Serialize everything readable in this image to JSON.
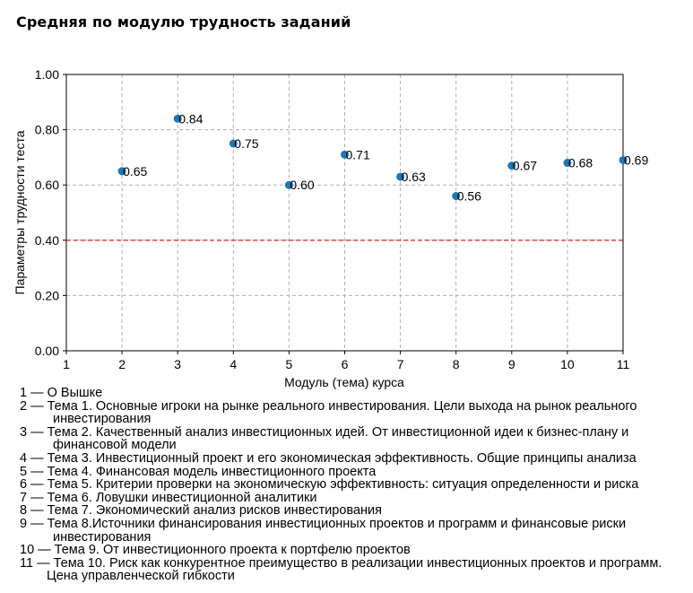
{
  "page_title": "Средняя по модулю трудность заданий",
  "chart_data": {
    "type": "scatter",
    "title": "",
    "xlabel": "Модуль (тема) курса",
    "ylabel": "Параметры трудности теста",
    "xlim": [
      1,
      11
    ],
    "ylim": [
      0,
      1
    ],
    "x_ticks": [
      "1",
      "2",
      "3",
      "4",
      "5",
      "6",
      "7",
      "8",
      "9",
      "10",
      "11"
    ],
    "y_ticks": [
      "0.00",
      "0.20",
      "0.40",
      "0.60",
      "0.80",
      "1.00"
    ],
    "grid": true,
    "points": [
      {
        "x": 2,
        "y": 0.65,
        "label": "0.65"
      },
      {
        "x": 3,
        "y": 0.84,
        "label": "0.84"
      },
      {
        "x": 4,
        "y": 0.75,
        "label": "0.75"
      },
      {
        "x": 5,
        "y": 0.6,
        "label": "0.60"
      },
      {
        "x": 6,
        "y": 0.71,
        "label": "0.71"
      },
      {
        "x": 7,
        "y": 0.63,
        "label": "0.63"
      },
      {
        "x": 8,
        "y": 0.56,
        "label": "0.56"
      },
      {
        "x": 9,
        "y": 0.67,
        "label": "0.67"
      },
      {
        "x": 10,
        "y": 0.68,
        "label": "0.68"
      },
      {
        "x": 11,
        "y": 0.69,
        "label": "0.69"
      }
    ],
    "threshold": {
      "y": 0.4,
      "style": "dashed",
      "color": "#e8333a"
    },
    "point_color": "#1f77b4"
  },
  "legend_items": [
    "1 — О Вышке",
    "2 — Тема 1. Основные игроки на рынке реального инвестирования. Цели выхода на рынок реального инвестирования",
    "3 — Тема 2. Качественный анализ инвестиционных идей. От инвестиционной идеи к бизнес-плану и финансовой модели",
    "4 — Тема 3. Инвестиционный проект и его экономическая эффективность. Общие принципы анализа",
    "5 — Тема 4. Финансовая модель инвестиционного проекта",
    "6 — Тема 5. Критерии проверки на экономическую эффективность: ситуация определенности и риска",
    "7 — Тема 6. Ловушки инвестиционной аналитики",
    "8 — Тема 7. Экономический анализ рисков инвестирования",
    "9 — Тема 8.Источники финансирования инвестиционных проектов и программ и финансовые риски инвестирования",
    "10 — Тема 9. От инвестиционного проекта к портфелю проектов",
    "11 — Тема 10. Риск как конкурентное преимущество в реализации инвестиционных проектов и программ. Цена управленческой гибкости"
  ]
}
